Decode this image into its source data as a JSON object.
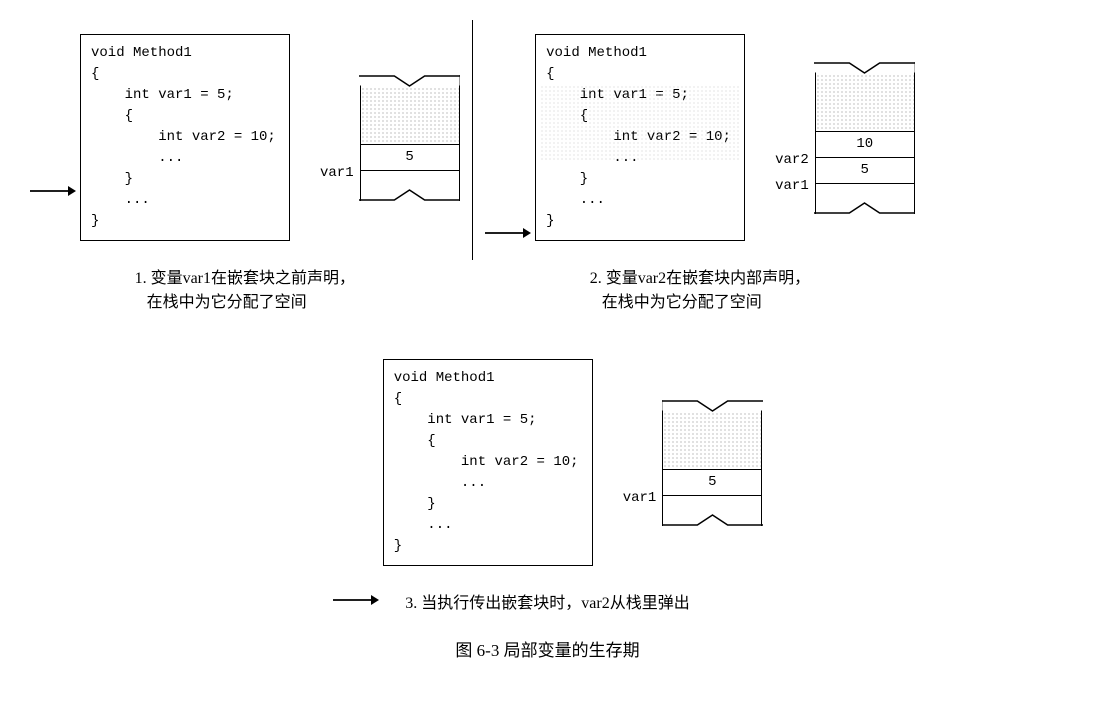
{
  "panels": [
    {
      "code": "void Method1\n{\n    int var1 = 5;\n    {\n        int var2 = 10;\n        ...\n    }\n    ...\n}",
      "arrow_line": 3,
      "highlight_block": false,
      "stack": [
        {
          "label": "var1",
          "value": "5"
        }
      ],
      "caption": "1. 变量var1在嵌套块之前声明，\n   在栈中为它分配了空间"
    },
    {
      "code": "void Method1\n{\n    int var1 = 5;\n    {\n        int var2 = 10;\n        ...\n    }\n    ...\n}",
      "arrow_line": 5,
      "highlight_block": true,
      "stack": [
        {
          "label": "var2",
          "value": "10"
        },
        {
          "label": "var1",
          "value": "5"
        }
      ],
      "caption": "2. 变量var2在嵌套块内部声明，\n   在栈中为它分配了空间"
    },
    {
      "code": "void Method1\n{\n    int var1 = 5;\n    {\n        int var2 = 10;\n        ...\n    }\n    ...\n}",
      "arrow_line": 7,
      "highlight_block": false,
      "stack": [
        {
          "label": "var1",
          "value": "5"
        }
      ],
      "caption": "3. 当执行传出嵌套块时，var2从栈里弹出"
    }
  ],
  "figure_title": "图 6-3  局部变量的生存期",
  "style": {
    "border_color": "#000000",
    "background": "#ffffff",
    "stipple_color": "#888888",
    "code_font": "Courier New",
    "code_fontsize": 14,
    "caption_fontsize": 16,
    "title_fontsize": 17,
    "code_box_width": 210,
    "stack_width": 100,
    "stack_cell_height": 26,
    "line_height": 1.5
  }
}
